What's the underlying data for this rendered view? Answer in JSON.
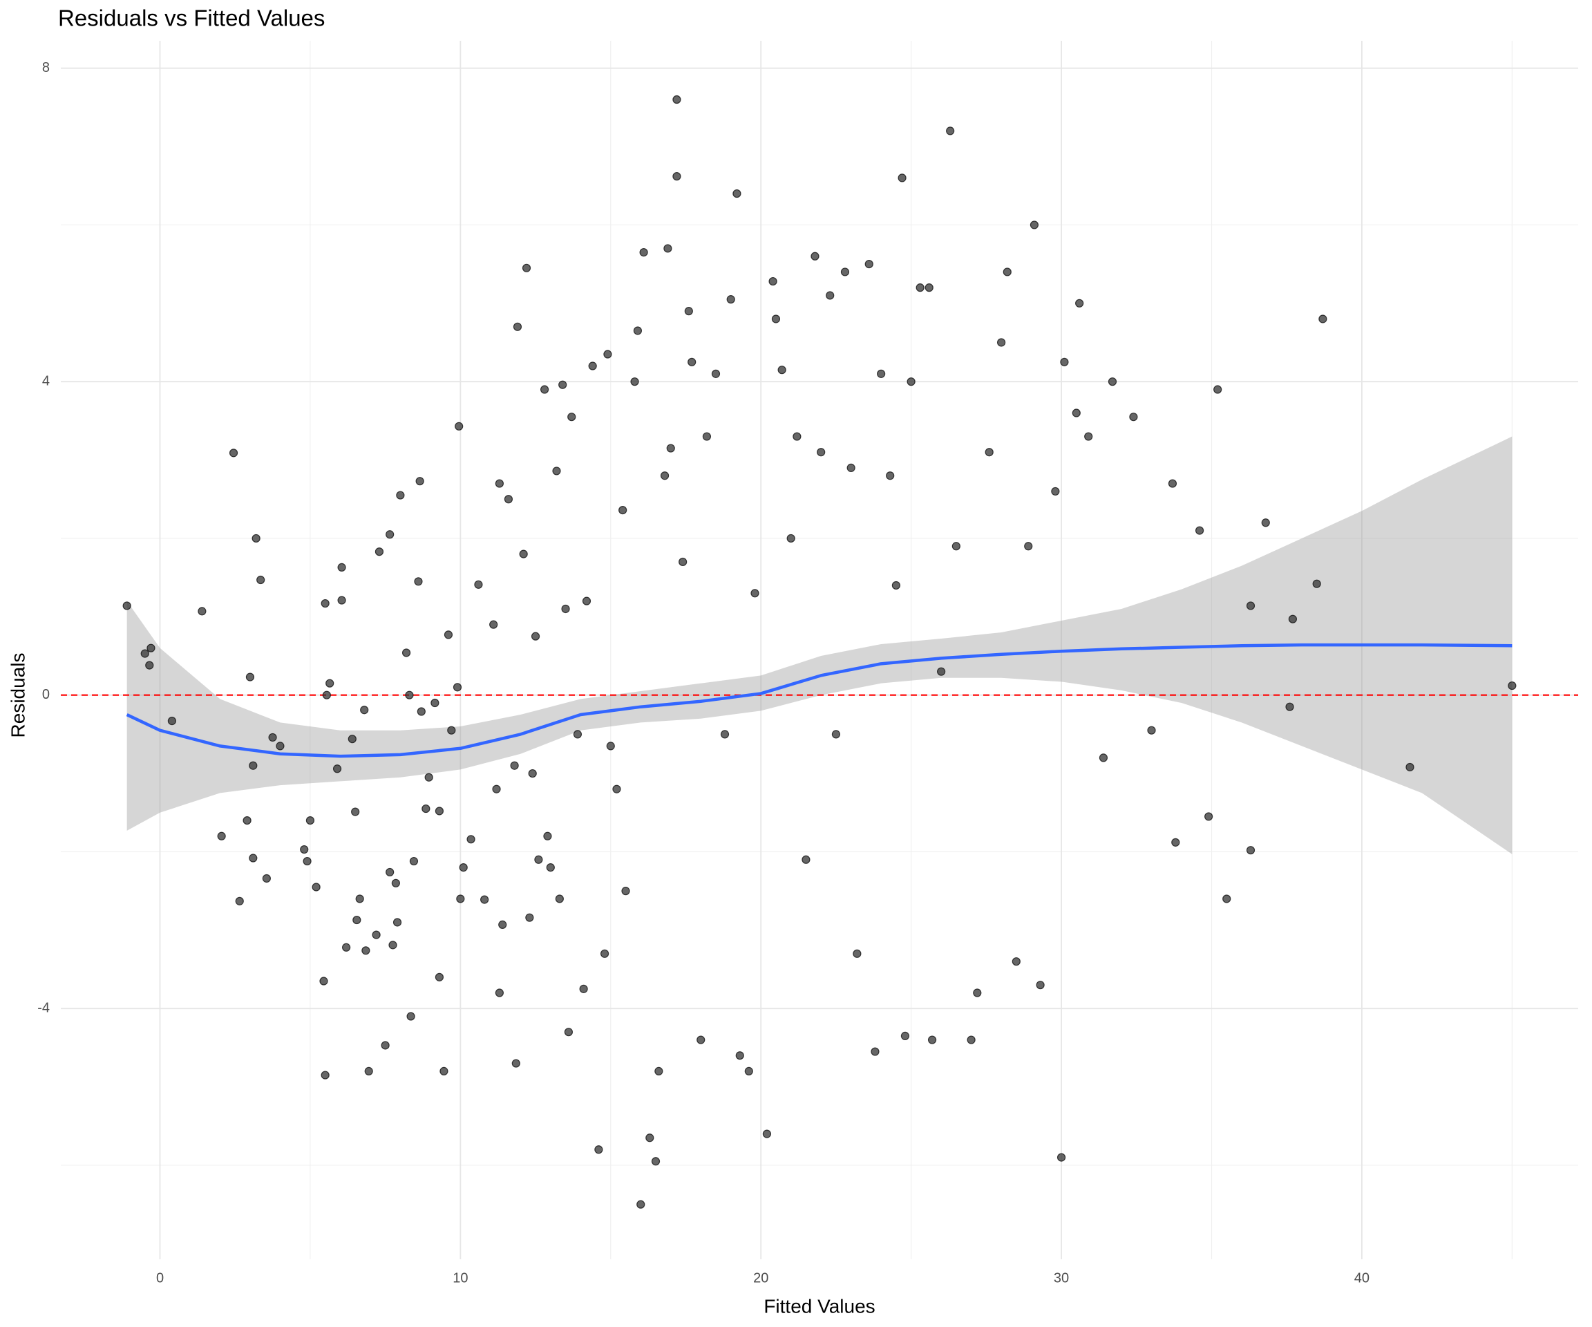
{
  "chart_data": {
    "type": "scatter",
    "title": "Residuals vs Fitted Values",
    "xlabel": "Fitted Values",
    "ylabel": "Residuals",
    "xlim": [
      -3.3,
      47.2
    ],
    "ylim": [
      -7.2,
      8.35
    ],
    "xticks": [
      0,
      10,
      20,
      30,
      40
    ],
    "yticks": [
      -4,
      0,
      4,
      8
    ],
    "xminor": [
      5,
      15,
      25,
      35,
      45
    ],
    "yminor": [
      -6,
      -2,
      2,
      6
    ],
    "grid": true,
    "color": "#333333",
    "x": [
      -1.1,
      -0.5,
      -0.3,
      -0.35,
      0.4,
      1.4,
      2.05,
      2.45,
      2.65,
      2.9,
      3.0,
      3.1,
      3.1,
      3.2,
      3.35,
      3.55,
      3.75,
      4.0,
      4.8,
      4.9,
      5.0,
      5.2,
      5.45,
      5.5,
      5.5,
      5.55,
      5.65,
      5.9,
      6.05,
      6.05,
      6.2,
      6.4,
      6.5,
      6.55,
      6.65,
      6.8,
      6.85,
      6.95,
      7.2,
      7.3,
      7.5,
      7.65,
      7.65,
      7.75,
      7.85,
      7.9,
      8.0,
      8.2,
      8.3,
      8.35,
      8.45,
      8.6,
      8.65,
      8.7,
      8.85,
      8.95,
      9.15,
      9.3,
      9.3,
      9.45,
      9.6,
      9.7,
      9.9,
      9.95,
      10.0,
      10.1,
      10.35,
      10.6,
      10.8,
      11.1,
      11.2,
      11.3,
      11.3,
      11.4,
      11.6,
      11.8,
      11.9,
      11.85,
      12.1,
      12.2,
      12.3,
      12.4,
      12.5,
      12.6,
      12.8,
      12.9,
      13.0,
      13.2,
      13.3,
      13.4,
      13.5,
      13.7,
      13.6,
      13.9,
      14.1,
      14.2,
      14.4,
      14.6,
      14.8,
      14.9,
      15.0,
      15.2,
      15.4,
      15.5,
      15.8,
      15.9,
      16.1,
      16.0,
      16.3,
      16.5,
      16.6,
      16.8,
      16.9,
      17.0,
      17.2,
      17.2,
      17.4,
      17.6,
      17.7,
      18.0,
      18.2,
      18.5,
      18.8,
      19.0,
      19.2,
      19.3,
      19.6,
      19.8,
      20.2,
      20.4,
      20.5,
      20.7,
      21.0,
      21.2,
      21.5,
      21.8,
      22.0,
      22.3,
      22.5,
      22.8,
      23.0,
      23.2,
      23.6,
      23.8,
      24.0,
      24.3,
      24.5,
      24.7,
      24.8,
      25.0,
      25.3,
      25.6,
      25.7,
      26.0,
      26.3,
      26.5,
      27.0,
      27.2,
      27.6,
      28.0,
      28.2,
      28.5,
      28.9,
      29.1,
      29.3,
      29.8,
      30.0,
      30.1,
      30.5,
      30.6,
      30.9,
      31.4,
      31.7,
      32.4,
      33.0,
      33.7,
      33.8,
      34.6,
      34.9,
      35.2,
      35.5,
      36.3,
      36.3,
      36.8,
      37.6,
      37.7,
      38.5,
      38.7,
      41.6,
      45.0
    ],
    "values": [
      1.14,
      0.53,
      0.6,
      0.38,
      -0.33,
      1.07,
      -1.8,
      3.09,
      -2.63,
      -1.6,
      0.23,
      -0.9,
      -2.08,
      2.0,
      1.47,
      -2.34,
      -0.54,
      -0.65,
      -1.97,
      -2.12,
      -1.6,
      -2.45,
      -3.65,
      -4.85,
      1.17,
      0,
      0.15,
      -0.94,
      1.63,
      1.21,
      -3.22,
      -0.56,
      -1.49,
      -2.87,
      -2.6,
      -0.19,
      -3.26,
      -4.8,
      -3.06,
      1.83,
      -4.47,
      2.05,
      -2.26,
      -3.19,
      -2.4,
      -2.9,
      2.55,
      0.54,
      0,
      -4.1,
      -2.12,
      1.45,
      2.73,
      -0.21,
      -1.45,
      -1.05,
      -0.1,
      -1.48,
      -3.6,
      -4.8,
      0.77,
      -0.45,
      0.1,
      3.43,
      -2.6,
      -2.2,
      -1.84,
      1.41,
      -2.61,
      0.9,
      -1.2,
      -3.8,
      2.7,
      -2.93,
      2.5,
      -0.9,
      4.7,
      -4.7,
      1.8,
      5.45,
      -2.84,
      -1.0,
      0.75,
      -2.1,
      3.9,
      -1.8,
      -2.2,
      2.86,
      -2.6,
      3.96,
      1.1,
      3.55,
      -4.3,
      -0.5,
      -3.75,
      1.2,
      4.2,
      -5.8,
      -3.3,
      4.35,
      -0.65,
      -1.2,
      2.36,
      -2.5,
      4.0,
      4.65,
      5.65,
      -6.5,
      -5.65,
      -5.95,
      -4.8,
      2.8,
      5.7,
      3.15,
      7.6,
      6.62,
      1.7,
      4.9,
      4.25,
      -4.4,
      3.3,
      4.1,
      -0.5,
      5.05,
      6.4,
      -4.6,
      -4.8,
      1.3,
      -5.6,
      5.28,
      4.8,
      4.15,
      2.0,
      3.3,
      -2.1,
      5.6,
      3.1,
      5.1,
      -0.5,
      5.4,
      2.9,
      -3.3,
      5.5,
      -4.55,
      4.1,
      2.8,
      1.4,
      6.6,
      -4.35,
      4.0,
      5.2,
      5.2,
      -4.4,
      0.3,
      7.2,
      1.9,
      -4.4,
      -3.8,
      3.1,
      4.5,
      5.4,
      -3.4,
      1.9,
      6.0,
      -3.7,
      2.6,
      -5.9,
      4.25,
      3.6,
      5.0,
      3.3,
      -0.8,
      4.0,
      3.55,
      -0.45,
      2.7,
      -1.88,
      2.1,
      -1.55,
      3.9,
      -2.6,
      -1.98,
      1.14,
      2.2,
      -0.15,
      0.97,
      1.42,
      4.8,
      -0.92,
      0.12
    ],
    "smooth": {
      "color": "#3366ff",
      "band_color": "#999999",
      "x": [
        -1.1,
        0,
        2,
        4,
        6,
        8,
        10,
        12,
        14,
        16,
        18,
        20,
        22,
        24,
        26,
        28,
        30,
        32,
        34,
        36,
        38,
        40,
        42,
        45
      ],
      "values": [
        -0.25,
        -0.45,
        -0.65,
        -0.75,
        -0.78,
        -0.76,
        -0.68,
        -0.5,
        -0.25,
        -0.15,
        -0.08,
        0.02,
        0.25,
        0.4,
        0.47,
        0.52,
        0.56,
        0.59,
        0.61,
        0.63,
        0.64,
        0.64,
        0.64,
        0.63
      ],
      "lower": [
        -1.73,
        -1.5,
        -1.25,
        -1.15,
        -1.1,
        -1.05,
        -0.95,
        -0.75,
        -0.45,
        -0.35,
        -0.3,
        -0.2,
        0.0,
        0.15,
        0.22,
        0.22,
        0.17,
        0.06,
        -0.1,
        -0.35,
        -0.65,
        -0.95,
        -1.25,
        -2.03
      ],
      "upper": [
        1.2,
        0.6,
        -0.05,
        -0.35,
        -0.45,
        -0.45,
        -0.4,
        -0.25,
        -0.05,
        0.05,
        0.15,
        0.25,
        0.5,
        0.65,
        0.72,
        0.8,
        0.95,
        1.1,
        1.35,
        1.65,
        2.0,
        2.35,
        2.75,
        3.3
      ]
    },
    "hline": {
      "value": 0,
      "color": "#ff0000"
    }
  }
}
